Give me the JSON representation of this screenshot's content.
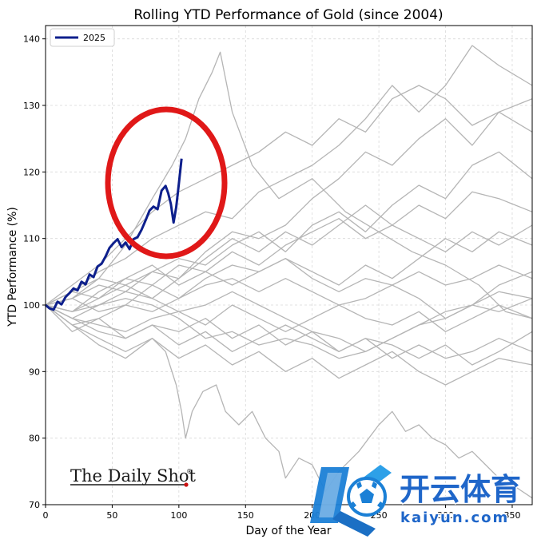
{
  "chart_data": {
    "type": "line",
    "title": "Rolling YTD Performance of Gold (since 2004)",
    "xlabel": "Day of the Year",
    "ylabel": "YTD Performance (%)",
    "xlim": [
      0,
      365
    ],
    "ylim": [
      70,
      142
    ],
    "x_ticks": [
      0,
      50,
      100,
      150,
      200,
      250,
      300,
      350
    ],
    "y_ticks": [
      70,
      80,
      90,
      100,
      110,
      120,
      130,
      140
    ],
    "grid": true,
    "legend": {
      "placement": "top-left",
      "entries": [
        "2025"
      ]
    },
    "highlight_series": {
      "name": "2025",
      "color": "#0d1f8c",
      "points": [
        [
          0,
          100
        ],
        [
          3,
          99.5
        ],
        [
          6,
          99.3
        ],
        [
          9,
          100.5
        ],
        [
          12,
          100.1
        ],
        [
          15,
          101.2
        ],
        [
          18,
          101.8
        ],
        [
          21,
          102.5
        ],
        [
          24,
          102.2
        ],
        [
          27,
          103.5
        ],
        [
          30,
          103.1
        ],
        [
          33,
          104.6
        ],
        [
          36,
          104.2
        ],
        [
          39,
          105.8
        ],
        [
          42,
          106.2
        ],
        [
          45,
          107.3
        ],
        [
          48,
          108.6
        ],
        [
          51,
          109.3
        ],
        [
          54,
          109.9
        ],
        [
          57,
          108.7
        ],
        [
          60,
          109.4
        ],
        [
          63,
          108.4
        ],
        [
          66,
          109.9
        ],
        [
          69,
          110.2
        ],
        [
          72,
          111.3
        ],
        [
          75,
          112.7
        ],
        [
          78,
          114.2
        ],
        [
          81,
          114.8
        ],
        [
          84,
          114.4
        ],
        [
          87,
          117.2
        ],
        [
          90,
          117.9
        ],
        [
          92,
          116.8
        ],
        [
          94,
          115.2
        ],
        [
          96,
          112.4
        ],
        [
          98,
          114.7
        ],
        [
          100,
          118.2
        ],
        [
          102,
          122
        ]
      ]
    },
    "background_series_color": "#b5b5b5",
    "background_series": [
      [
        [
          0,
          100
        ],
        [
          20,
          101
        ],
        [
          40,
          104
        ],
        [
          60,
          109
        ],
        [
          80,
          116
        ],
        [
          95,
          121
        ],
        [
          105,
          125
        ],
        [
          115,
          131
        ],
        [
          125,
          135
        ],
        [
          131,
          138
        ],
        [
          140,
          129
        ],
        [
          155,
          121
        ],
        [
          175,
          116
        ],
        [
          200,
          119
        ],
        [
          225,
          114
        ],
        [
          250,
          111
        ],
        [
          275,
          108
        ],
        [
          300,
          106
        ],
        [
          325,
          103
        ],
        [
          345,
          99
        ],
        [
          365,
          98
        ]
      ],
      [
        [
          0,
          100
        ],
        [
          20,
          103
        ],
        [
          40,
          106
        ],
        [
          60,
          110
        ],
        [
          80,
          114
        ],
        [
          100,
          117
        ],
        [
          120,
          119
        ],
        [
          140,
          121
        ],
        [
          160,
          123
        ],
        [
          180,
          126
        ],
        [
          200,
          124
        ],
        [
          220,
          128
        ],
        [
          240,
          126
        ],
        [
          260,
          131
        ],
        [
          280,
          133
        ],
        [
          300,
          131
        ],
        [
          320,
          127
        ],
        [
          340,
          129
        ],
        [
          365,
          131
        ]
      ],
      [
        [
          0,
          100
        ],
        [
          20,
          102
        ],
        [
          40,
          105
        ],
        [
          60,
          107
        ],
        [
          80,
          110
        ],
        [
          100,
          112
        ],
        [
          120,
          114
        ],
        [
          140,
          113
        ],
        [
          160,
          117
        ],
        [
          180,
          119
        ],
        [
          200,
          121
        ],
        [
          220,
          124
        ],
        [
          240,
          128
        ],
        [
          260,
          133
        ],
        [
          280,
          129
        ],
        [
          300,
          133
        ],
        [
          320,
          139
        ],
        [
          340,
          136
        ],
        [
          365,
          133
        ]
      ],
      [
        [
          0,
          100
        ],
        [
          20,
          99
        ],
        [
          40,
          101
        ],
        [
          60,
          103
        ],
        [
          80,
          105
        ],
        [
          100,
          104
        ],
        [
          120,
          108
        ],
        [
          140,
          111
        ],
        [
          160,
          110
        ],
        [
          180,
          112
        ],
        [
          200,
          116
        ],
        [
          220,
          119
        ],
        [
          240,
          123
        ],
        [
          260,
          121
        ],
        [
          280,
          125
        ],
        [
          300,
          128
        ],
        [
          320,
          124
        ],
        [
          340,
          129
        ],
        [
          365,
          126
        ]
      ],
      [
        [
          0,
          100
        ],
        [
          20,
          101
        ],
        [
          40,
          103
        ],
        [
          60,
          102
        ],
        [
          80,
          105
        ],
        [
          100,
          107
        ],
        [
          120,
          106
        ],
        [
          140,
          109
        ],
        [
          160,
          111
        ],
        [
          180,
          108
        ],
        [
          200,
          112
        ],
        [
          220,
          114
        ],
        [
          240,
          111
        ],
        [
          260,
          115
        ],
        [
          280,
          118
        ],
        [
          300,
          116
        ],
        [
          320,
          121
        ],
        [
          340,
          123
        ],
        [
          365,
          119
        ]
      ],
      [
        [
          0,
          100
        ],
        [
          20,
          102
        ],
        [
          40,
          101
        ],
        [
          60,
          104
        ],
        [
          80,
          106
        ],
        [
          100,
          103
        ],
        [
          120,
          105
        ],
        [
          140,
          108
        ],
        [
          160,
          106
        ],
        [
          180,
          109
        ],
        [
          200,
          111
        ],
        [
          220,
          113
        ],
        [
          240,
          110
        ],
        [
          260,
          112
        ],
        [
          280,
          115
        ],
        [
          300,
          113
        ],
        [
          320,
          117
        ],
        [
          340,
          116
        ],
        [
          365,
          114
        ]
      ],
      [
        [
          0,
          100
        ],
        [
          20,
          98
        ],
        [
          40,
          100
        ],
        [
          60,
          102
        ],
        [
          80,
          101
        ],
        [
          100,
          104
        ],
        [
          120,
          107
        ],
        [
          140,
          110
        ],
        [
          160,
          108
        ],
        [
          180,
          111
        ],
        [
          200,
          109
        ],
        [
          220,
          112
        ],
        [
          240,
          115
        ],
        [
          260,
          112
        ],
        [
          280,
          110
        ],
        [
          300,
          108
        ],
        [
          320,
          111
        ],
        [
          340,
          109
        ],
        [
          365,
          112
        ]
      ],
      [
        [
          0,
          100
        ],
        [
          20,
          101
        ],
        [
          40,
          99
        ],
        [
          60,
          100
        ],
        [
          80,
          103
        ],
        [
          100,
          101
        ],
        [
          120,
          104
        ],
        [
          140,
          106
        ],
        [
          160,
          105
        ],
        [
          180,
          107
        ],
        [
          200,
          105
        ],
        [
          220,
          103
        ],
        [
          240,
          106
        ],
        [
          260,
          104
        ],
        [
          280,
          107
        ],
        [
          300,
          110
        ],
        [
          320,
          108
        ],
        [
          340,
          111
        ],
        [
          365,
          109
        ]
      ],
      [
        [
          0,
          100
        ],
        [
          20,
          99
        ],
        [
          40,
          102
        ],
        [
          60,
          104
        ],
        [
          80,
          103
        ],
        [
          100,
          106
        ],
        [
          120,
          105
        ],
        [
          140,
          103
        ],
        [
          160,
          105
        ],
        [
          180,
          107
        ],
        [
          200,
          104
        ],
        [
          220,
          102
        ],
        [
          240,
          104
        ],
        [
          260,
          103
        ],
        [
          280,
          105
        ],
        [
          300,
          103
        ],
        [
          320,
          104
        ],
        [
          340,
          106
        ],
        [
          365,
          104
        ]
      ],
      [
        [
          0,
          100
        ],
        [
          20,
          97
        ],
        [
          40,
          98
        ],
        [
          60,
          100
        ],
        [
          80,
          99
        ],
        [
          100,
          101
        ],
        [
          120,
          103
        ],
        [
          140,
          104
        ],
        [
          160,
          102
        ],
        [
          180,
          104
        ],
        [
          200,
          102
        ],
        [
          220,
          100
        ],
        [
          240,
          101
        ],
        [
          260,
          103
        ],
        [
          280,
          101
        ],
        [
          300,
          98
        ],
        [
          320,
          100
        ],
        [
          340,
          102
        ],
        [
          365,
          101
        ]
      ],
      [
        [
          0,
          100
        ],
        [
          20,
          98
        ],
        [
          40,
          97
        ],
        [
          60,
          96
        ],
        [
          80,
          98
        ],
        [
          100,
          99
        ],
        [
          120,
          97
        ],
        [
          140,
          100
        ],
        [
          160,
          98
        ],
        [
          180,
          96
        ],
        [
          200,
          98
        ],
        [
          220,
          100
        ],
        [
          240,
          98
        ],
        [
          260,
          97
        ],
        [
          280,
          99
        ],
        [
          300,
          96
        ],
        [
          320,
          98
        ],
        [
          340,
          100
        ],
        [
          365,
          98
        ]
      ],
      [
        [
          0,
          100
        ],
        [
          20,
          96
        ],
        [
          40,
          98
        ],
        [
          60,
          95
        ],
        [
          80,
          97
        ],
        [
          100,
          96
        ],
        [
          120,
          98
        ],
        [
          140,
          95
        ],
        [
          160,
          97
        ],
        [
          180,
          94
        ],
        [
          200,
          96
        ],
        [
          220,
          93
        ],
        [
          240,
          95
        ],
        [
          260,
          92
        ],
        [
          280,
          94
        ],
        [
          300,
          92
        ],
        [
          320,
          93
        ],
        [
          340,
          95
        ],
        [
          365,
          93
        ]
      ],
      [
        [
          0,
          100
        ],
        [
          20,
          97
        ],
        [
          40,
          95
        ],
        [
          60,
          93
        ],
        [
          80,
          95
        ],
        [
          100,
          92
        ],
        [
          120,
          94
        ],
        [
          140,
          91
        ],
        [
          160,
          93
        ],
        [
          180,
          90
        ],
        [
          200,
          92
        ],
        [
          220,
          89
        ],
        [
          240,
          91
        ],
        [
          260,
          93
        ],
        [
          280,
          90
        ],
        [
          300,
          88
        ],
        [
          320,
          90
        ],
        [
          340,
          92
        ],
        [
          365,
          91
        ]
      ],
      [
        [
          0,
          100
        ],
        [
          20,
          98
        ],
        [
          40,
          96
        ],
        [
          60,
          95
        ],
        [
          80,
          97
        ],
        [
          100,
          94
        ],
        [
          120,
          96
        ],
        [
          140,
          93
        ],
        [
          160,
          95
        ],
        [
          180,
          97
        ],
        [
          200,
          95
        ],
        [
          220,
          93
        ],
        [
          240,
          95
        ],
        [
          260,
          94
        ],
        [
          280,
          92
        ],
        [
          300,
          94
        ],
        [
          320,
          91
        ],
        [
          340,
          93
        ],
        [
          365,
          96
        ]
      ],
      [
        [
          0,
          100
        ],
        [
          20,
          102
        ],
        [
          40,
          104
        ],
        [
          60,
          103
        ],
        [
          80,
          101
        ],
        [
          100,
          99
        ],
        [
          120,
          100
        ],
        [
          140,
          102
        ],
        [
          160,
          100
        ],
        [
          180,
          98
        ],
        [
          200,
          96
        ],
        [
          220,
          95
        ],
        [
          240,
          93
        ],
        [
          260,
          95
        ],
        [
          280,
          97
        ],
        [
          300,
          99
        ],
        [
          320,
          100
        ],
        [
          340,
          103
        ],
        [
          365,
          105
        ]
      ],
      [
        [
          0,
          100
        ],
        [
          20,
          99
        ],
        [
          40,
          100
        ],
        [
          60,
          101
        ],
        [
          80,
          100
        ],
        [
          100,
          98
        ],
        [
          120,
          95
        ],
        [
          140,
          96
        ],
        [
          160,
          94
        ],
        [
          180,
          95
        ],
        [
          200,
          94
        ],
        [
          220,
          92
        ],
        [
          240,
          93
        ],
        [
          260,
          95
        ],
        [
          280,
          97
        ],
        [
          300,
          98
        ],
        [
          320,
          100
        ],
        [
          340,
          99
        ],
        [
          365,
          101
        ]
      ],
      [
        [
          0,
          100
        ],
        [
          20,
          97
        ],
        [
          40,
          94
        ],
        [
          60,
          92
        ],
        [
          80,
          95
        ],
        [
          90,
          93
        ],
        [
          98,
          88
        ],
        [
          102,
          84
        ],
        [
          105,
          80
        ],
        [
          110,
          84
        ],
        [
          118,
          87
        ],
        [
          128,
          88
        ],
        [
          135,
          84
        ],
        [
          145,
          82
        ],
        [
          155,
          84
        ],
        [
          165,
          80
        ],
        [
          175,
          78
        ],
        [
          180,
          74
        ],
        [
          190,
          77
        ],
        [
          200,
          76
        ],
        [
          210,
          72
        ],
        [
          220,
          75
        ],
        [
          235,
          78
        ],
        [
          250,
          82
        ],
        [
          260,
          84
        ],
        [
          270,
          81
        ],
        [
          280,
          82
        ],
        [
          290,
          80
        ],
        [
          300,
          79
        ],
        [
          310,
          77
        ],
        [
          320,
          78
        ],
        [
          330,
          76
        ],
        [
          340,
          74
        ],
        [
          350,
          73
        ],
        [
          365,
          71
        ]
      ]
    ]
  },
  "branding": {
    "logo_text": "The Daily Shot",
    "registered": "®"
  },
  "watermark": {
    "chinese_text": "开云体育",
    "latin_text": "kaiyun.com"
  }
}
